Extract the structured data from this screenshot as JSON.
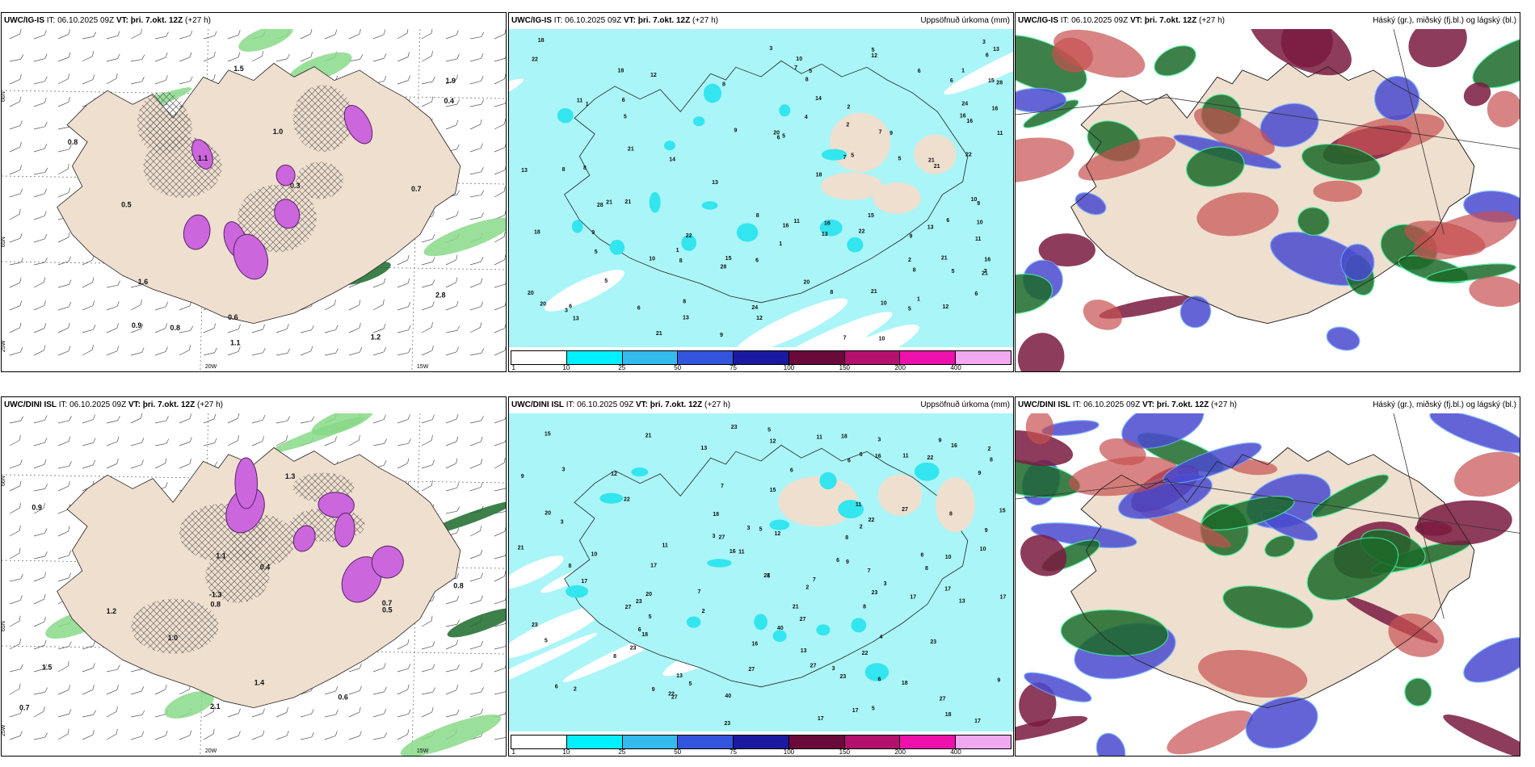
{
  "colors": {
    "land": "#efdfcf",
    "sea": "#ffffff",
    "hatch": "#555555",
    "magenta": "#cc66dd",
    "green": "#88d988",
    "darkgreen": "#1c6a2a",
    "cyan": "#aaf5f7",
    "cyan2": "#33e5ee",
    "purple": "#7a1a40",
    "blue": "#4a4ad0",
    "red": "#c85050"
  },
  "rows": [
    {
      "model": "UWC/IG-IS",
      "it_label": "IT:",
      "it_value": "06.10.2025 09Z",
      "vt_label": "VT:",
      "vt_value": "þri. 7.okt. 12Z",
      "lead": "(+27 h)",
      "precip_title": "Uppsöfnuð úrkoma (mm)",
      "cloud_title": "Háský (gr.), miðský (fj.bl.) og lágský (bl.)",
      "axis_labels": [
        "66N",
        "65N",
        "25W",
        "20W",
        "15W"
      ],
      "icing_labels": [
        "0.8",
        "1.0",
        "1.2",
        "1.1",
        "0.9",
        "0.6",
        "0.5",
        "1.6",
        "2.8",
        "1.9",
        "0.4",
        "1.5",
        "0.7",
        "0.3",
        "1.1",
        "0.8"
      ],
      "precip_labels": [
        "16",
        "13",
        "12",
        "28",
        "10",
        "21",
        "15",
        "20",
        "24",
        "22",
        "18",
        "14",
        "11",
        "9",
        "8",
        "7",
        "6",
        "5",
        "4",
        "3",
        "2",
        "1"
      ]
    },
    {
      "model": "UWC/DINI ISL",
      "it_label": "IT:",
      "it_value": "06.10.2025 09Z",
      "vt_label": "VT:",
      "vt_value": "þri. 7.okt. 12Z",
      "lead": "(+27 h)",
      "precip_title": "Uppsöfnuð úrkoma (mm)",
      "cloud_title": "Háský (gr.), miðský (fj.bl.) og lágský (bl.)",
      "axis_labels": [
        "66N",
        "65N",
        "25W",
        "20W",
        "15W"
      ],
      "icing_labels": [
        "0.7",
        "1.2",
        "1.0",
        "0.9",
        "0.8",
        "0.6",
        "1.3",
        "-1.3",
        "0.8",
        "0.5",
        "1.4",
        "2.1",
        "0.7",
        "1.5",
        "1.1",
        "0.4"
      ],
      "precip_labels": [
        "13",
        "40",
        "23",
        "27",
        "18",
        "21",
        "16",
        "22",
        "15",
        "17",
        "20",
        "12",
        "11",
        "10",
        "9",
        "8",
        "7",
        "6",
        "5",
        "4",
        "3",
        "2"
      ]
    }
  ],
  "legend": {
    "ticks": [
      "1",
      "10",
      "25",
      "50",
      "75",
      "100",
      "150",
      "200",
      "400"
    ],
    "colors": [
      "#ffffff",
      "#00f0ff",
      "#33bbee",
      "#3355dd",
      "#1a1aa0",
      "#6a0a3a",
      "#b4106e",
      "#ee10aa",
      "#f0a8f0"
    ]
  }
}
